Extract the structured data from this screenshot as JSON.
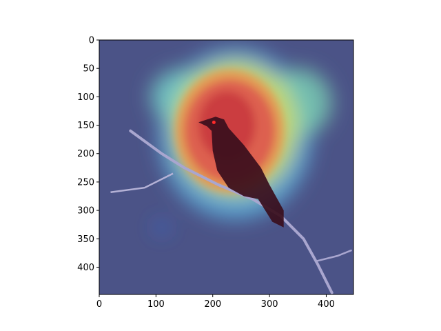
{
  "chart_data": {
    "type": "heatmap",
    "title": "",
    "xlabel": "",
    "ylabel": "",
    "xlim": [
      0,
      448
    ],
    "ylim": [
      448,
      0
    ],
    "x_ticks": [
      "0",
      "100",
      "200",
      "300",
      "400"
    ],
    "y_ticks": [
      "0",
      "50",
      "100",
      "150",
      "200",
      "250",
      "300",
      "350",
      "400"
    ],
    "colormap": "jet",
    "image_subject": "red-eyed dark bird perched on a budding branch",
    "background_color": "#4b5387",
    "heat_hotspots": [
      {
        "cx": 240,
        "cy": 165,
        "rx": 135,
        "ry": 150,
        "intensity": 0.55
      },
      {
        "cx": 230,
        "cy": 160,
        "rx": 80,
        "ry": 90,
        "intensity": 0.45
      },
      {
        "cx": 225,
        "cy": 150,
        "rx": 50,
        "ry": 60,
        "intensity": 0.25
      },
      {
        "cx": 150,
        "cy": 100,
        "rx": 60,
        "ry": 50,
        "intensity": 0.18
      },
      {
        "cx": 350,
        "cy": 110,
        "rx": 60,
        "ry": 60,
        "intensity": 0.18
      },
      {
        "cx": 110,
        "cy": 330,
        "rx": 12,
        "ry": 10,
        "intensity": 0.08
      }
    ]
  }
}
